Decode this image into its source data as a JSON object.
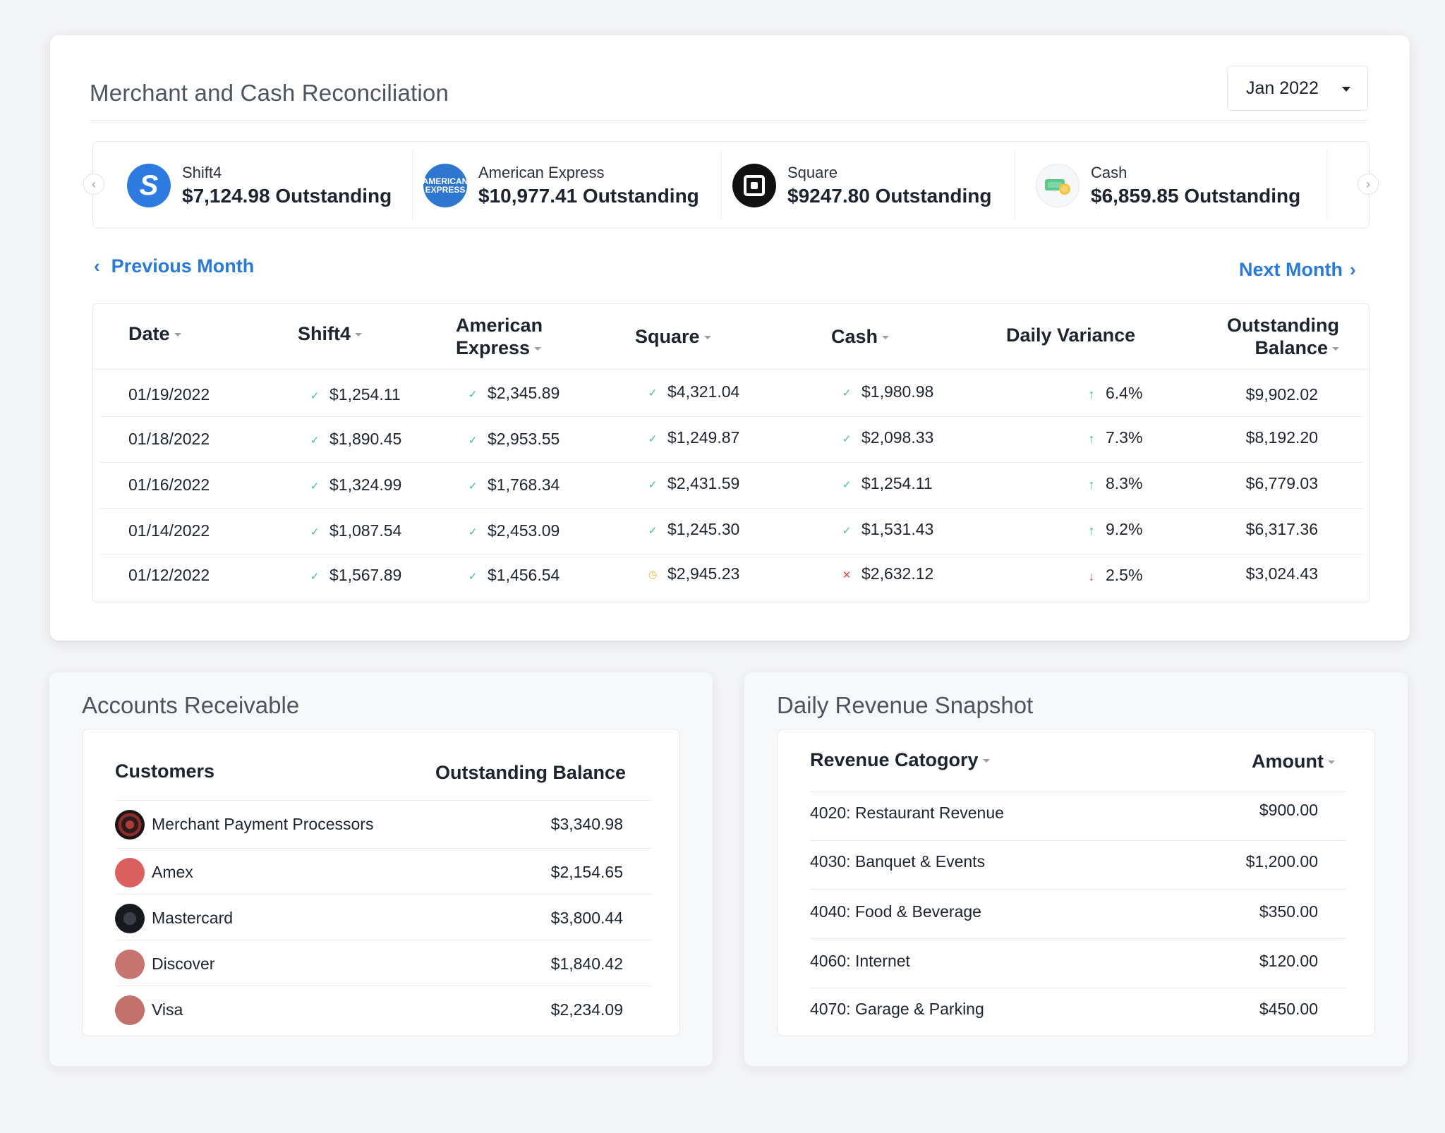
{
  "recon": {
    "title": "Merchant and Cash Reconciliation",
    "month_select": "Jan 2022",
    "merchants": [
      {
        "name": "Shift4",
        "amount": "$7,124.98 Outstanding",
        "logo": "S"
      },
      {
        "name": "American Express",
        "amount": "$10,977.41 Outstanding",
        "logo": "AMERICAN EXPRESS"
      },
      {
        "name": "Square",
        "amount": "$9247.80 Outstanding"
      },
      {
        "name": "Cash",
        "amount": "$6,859.85 Outstanding"
      }
    ],
    "prev_label": "Previous Month",
    "next_label": "Next Month",
    "columns": [
      "Date",
      "Shift4",
      "American Express",
      "Square",
      "Cash",
      "Daily Variance",
      "Outstanding Balance"
    ],
    "rows": [
      {
        "date": "01/19/2022",
        "shift4": "$1,254.11",
        "amex": "$2,345.89",
        "square": "$4,321.04",
        "cash": "$1,980.98",
        "variance": "6.4%",
        "balance": "$9,902.02",
        "square_status": "ok",
        "cash_status": "ok",
        "trend": "up"
      },
      {
        "date": "01/18/2022",
        "shift4": "$1,890.45",
        "amex": "$2,953.55",
        "square": "$1,249.87",
        "cash": "$2,098.33",
        "variance": "7.3%",
        "balance": "$8,192.20",
        "square_status": "ok",
        "cash_status": "ok",
        "trend": "up"
      },
      {
        "date": "01/16/2022",
        "shift4": "$1,324.99",
        "amex": "$1,768.34",
        "square": "$2,431.59",
        "cash": "$1,254.11",
        "variance": "8.3%",
        "balance": "$6,779.03",
        "square_status": "ok",
        "cash_status": "ok",
        "trend": "up"
      },
      {
        "date": "01/14/2022",
        "shift4": "$1,087.54",
        "amex": "$2,453.09",
        "square": "$1,245.30",
        "cash": "$1,531.43",
        "variance": "9.2%",
        "balance": "$6,317.36",
        "square_status": "ok",
        "cash_status": "ok",
        "trend": "up"
      },
      {
        "date": "01/12/2022",
        "shift4": "$1,567.89",
        "amex": "$1,456.54",
        "square": "$2,945.23",
        "cash": "$2,632.12",
        "variance": "2.5%",
        "balance": "$3,024.43",
        "square_status": "pending",
        "cash_status": "error",
        "trend": "down"
      }
    ]
  },
  "ar": {
    "title": "Accounts Receivable",
    "col_customers": "Customers",
    "col_balance": "Outstanding Balance",
    "rows": [
      {
        "name": "Merchant Payment Processors",
        "balance": "$3,340.98"
      },
      {
        "name": "Amex",
        "balance": "$2,154.65"
      },
      {
        "name": "Mastercard",
        "balance": "$3,800.44"
      },
      {
        "name": "Discover",
        "balance": "$1,840.42"
      },
      {
        "name": "Visa",
        "balance": "$2,234.09"
      }
    ]
  },
  "rev": {
    "title": "Daily Revenue Snapshot",
    "col_category": "Revenue Catogory",
    "col_amount": "Amount",
    "rows": [
      {
        "name": "4020: Restaurant Revenue",
        "amount": "$900.00"
      },
      {
        "name": "4030: Banquet & Events",
        "amount": "$1,200.00"
      },
      {
        "name": "4040: Food & Beverage",
        "amount": "$350.00"
      },
      {
        "name": "4060: Internet",
        "amount": "$120.00"
      },
      {
        "name": "4070: Garage & Parking",
        "amount": "$450.00"
      }
    ]
  },
  "colors": {
    "accent": "#2a7ad6",
    "ok": "#3bbf8e",
    "pending": "#f0b429",
    "error": "#e34b4b"
  }
}
